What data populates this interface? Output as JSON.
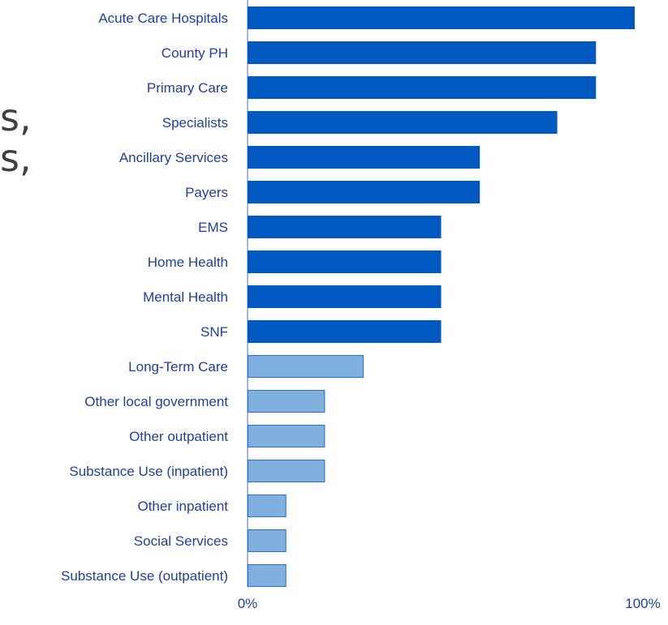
{
  "page": {
    "background_text_fragments": [
      "s,",
      "s,"
    ]
  },
  "colors": {
    "primary_bar": "#0059c1",
    "secondary_bar": "#7fb0e0",
    "secondary_bar_stroke": "#2f6fbf",
    "axis": "#3a6fd0",
    "label": "#1f3f9f"
  },
  "chart_data": {
    "type": "bar",
    "orientation": "horizontal",
    "categories": [
      "Acute Care Hospitals",
      "County PH",
      "Primary Care",
      "Specialists",
      "Ancillary Services",
      "Payers",
      "EMS",
      "Home Health",
      "Mental Health",
      "SNF",
      "Long-Term Care",
      "Other local government",
      "Other outpatient",
      "Substance Use (inpatient)",
      "Other inpatient",
      "Social Services",
      "Substance Use (outpatient)"
    ],
    "values": [
      100,
      90,
      90,
      80,
      60,
      60,
      50,
      50,
      50,
      50,
      30,
      20,
      20,
      20,
      10,
      10,
      10
    ],
    "emphasis": [
      "primary",
      "primary",
      "primary",
      "primary",
      "primary",
      "primary",
      "primary",
      "primary",
      "primary",
      "primary",
      "secondary",
      "secondary",
      "secondary",
      "secondary",
      "secondary",
      "secondary",
      "secondary"
    ],
    "xlim": [
      0,
      100
    ],
    "x_tick_labels": [
      "0%",
      "100%"
    ],
    "title": "",
    "xlabel": "",
    "ylabel": "",
    "grid": false,
    "legend": "none"
  }
}
